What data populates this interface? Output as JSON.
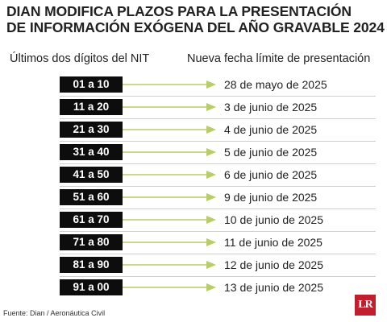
{
  "header": {
    "title_line1": "DIAN MODIFICA PLAZOS PARA LA PRESENTACIÓN",
    "title_line2": "DE INFORMACIÓN EXÓGENA DEL AÑO GRAVABLE 2024"
  },
  "columns": {
    "left": "Últimos dos dígitos del NIT",
    "right": "Nueva fecha límite de presentación"
  },
  "colors": {
    "badge": "#0d0d0d",
    "arrow": "#b8cc6a",
    "logo": "#c0202e"
  },
  "rows": [
    {
      "digits": "01 a 10",
      "date": "28 de mayo de 2025"
    },
    {
      "digits": "11 a 20",
      "date": "3 de junio de 2025"
    },
    {
      "digits": "21 a 30",
      "date": "4 de junio de 2025"
    },
    {
      "digits": "31 a 40",
      "date": "5 de junio de 2025"
    },
    {
      "digits": "41 a 50",
      "date": "6 de junio de 2025"
    },
    {
      "digits": "51 a 60",
      "date": "9 de junio de 2025"
    },
    {
      "digits": "61 a 70",
      "date": "10 de junio de 2025"
    },
    {
      "digits": "71 a 80",
      "date": "11 de junio de 2025"
    },
    {
      "digits": "81 a 90",
      "date": "12 de junio de 2025"
    },
    {
      "digits": "91 a 00",
      "date": "13 de junio de 2025"
    }
  ],
  "footer": {
    "source": "Fuente: Dian / Aeronáutica Civil",
    "logo": "LR"
  }
}
